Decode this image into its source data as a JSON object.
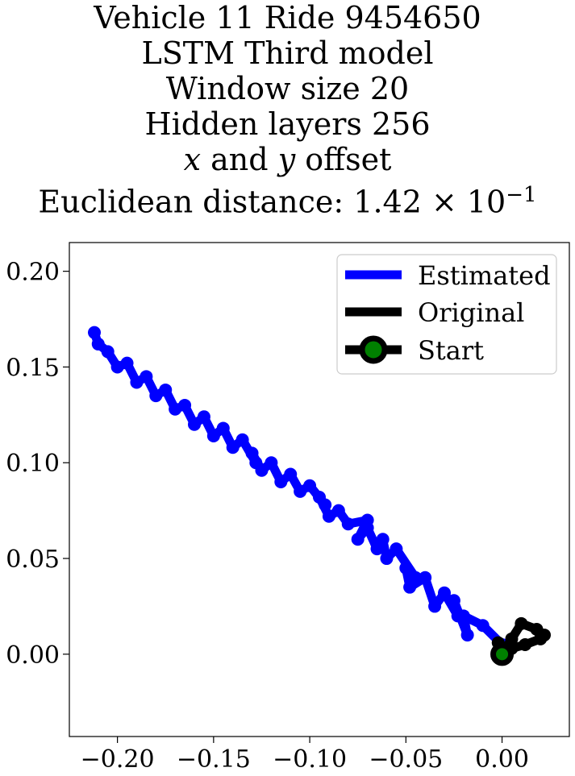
{
  "chart_data": {
    "type": "line",
    "title_lines": [
      "Vehicle 11 Ride 9454650",
      "LSTM Third model",
      "Window size 20",
      "Hidden layers 256",
      "x and y offset",
      "Euclidean distance: 1.42 × 10⁻¹"
    ],
    "title_var_x": "x",
    "title_and": " and ",
    "title_var_y": "y",
    "title_offset": " offset",
    "title_dist_prefix": "Euclidean distance: 1.42 × 10",
    "title_dist_exp": "−1",
    "xlim": [
      -0.225,
      0.035
    ],
    "ylim": [
      -0.043,
      0.215
    ],
    "xticks": [
      -0.2,
      -0.15,
      -0.1,
      -0.05,
      0.0
    ],
    "xtick_labels": [
      "−0.20",
      "−0.15",
      "−0.10",
      "−0.05",
      "0.00"
    ],
    "yticks": [
      0.0,
      0.05,
      0.1,
      0.15,
      0.2
    ],
    "ytick_labels": [
      "0.00",
      "0.05",
      "0.10",
      "0.15",
      "0.20"
    ],
    "grid": false,
    "legend_position": "top-right",
    "series": [
      {
        "name": "Estimated",
        "color": "#0000ff",
        "x": [
          0.0,
          -0.01,
          -0.02,
          -0.018,
          -0.025,
          -0.023,
          -0.03,
          -0.035,
          -0.04,
          -0.048,
          -0.05,
          -0.045,
          -0.055,
          -0.06,
          -0.062,
          -0.065,
          -0.07,
          -0.075,
          -0.07,
          -0.08,
          -0.085,
          -0.09,
          -0.095,
          -0.092,
          -0.1,
          -0.105,
          -0.11,
          -0.115,
          -0.12,
          -0.125,
          -0.13,
          -0.128,
          -0.135,
          -0.14,
          -0.145,
          -0.15,
          -0.155,
          -0.16,
          -0.165,
          -0.17,
          -0.175,
          -0.18,
          -0.185,
          -0.19,
          -0.195,
          -0.2,
          -0.205,
          -0.21,
          -0.212
        ],
        "y": [
          0.005,
          0.015,
          0.02,
          0.01,
          0.028,
          0.02,
          0.032,
          0.025,
          0.04,
          0.035,
          0.045,
          0.04,
          0.055,
          0.05,
          0.06,
          0.055,
          0.066,
          0.06,
          0.07,
          0.068,
          0.075,
          0.072,
          0.082,
          0.078,
          0.088,
          0.085,
          0.094,
          0.09,
          0.1,
          0.096,
          0.105,
          0.1,
          0.112,
          0.108,
          0.118,
          0.114,
          0.124,
          0.12,
          0.13,
          0.128,
          0.138,
          0.135,
          0.145,
          0.142,
          0.152,
          0.15,
          0.158,
          0.162,
          0.168
        ]
      },
      {
        "name": "Original",
        "color": "#000000",
        "x": [
          0.0,
          0.005,
          0.01,
          0.018,
          0.022,
          0.02,
          0.012,
          0.005,
          0.0,
          -0.002,
          0.0
        ],
        "y": [
          0.0,
          0.008,
          0.016,
          0.013,
          0.01,
          0.008,
          0.005,
          0.003,
          0.002,
          0.006,
          0.0
        ]
      },
      {
        "name": "Start",
        "color": "#000000",
        "marker_color": "#008000",
        "x": [
          0.0
        ],
        "y": [
          0.0
        ]
      }
    ]
  }
}
